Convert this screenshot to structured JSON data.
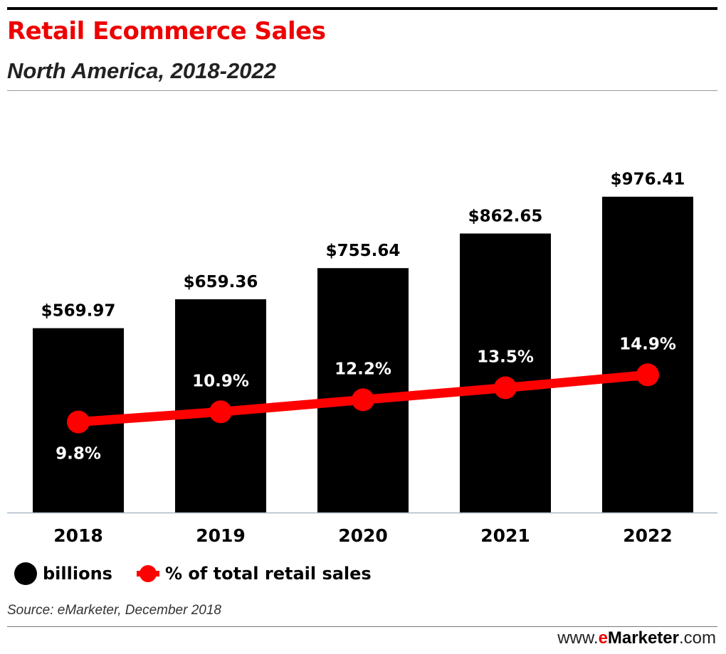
{
  "header": {
    "title": "Retail Ecommerce Sales",
    "subtitle": "North America, 2018-2022"
  },
  "colors": {
    "title": "#ee0000",
    "bars": "#000000",
    "line": "#ff0000"
  },
  "chart_data": {
    "type": "bar",
    "categories": [
      "2018",
      "2019",
      "2020",
      "2021",
      "2022"
    ],
    "series": [
      {
        "name": "billions",
        "type": "bar",
        "axis": "left",
        "values": [
          569.97,
          659.36,
          755.64,
          862.65,
          976.41
        ],
        "labels": [
          "$569.97",
          "$659.36",
          "$755.64",
          "$862.65",
          "$976.41"
        ]
      },
      {
        "name": "% of total retail sales",
        "type": "line",
        "axis": "right",
        "values": [
          9.8,
          10.9,
          12.2,
          13.5,
          14.9
        ],
        "labels": [
          "9.8%",
          "10.9%",
          "12.2%",
          "13.5%",
          "14.9%"
        ]
      }
    ],
    "ylim": [
      0,
      1000
    ],
    "ylim_secondary": [
      0,
      35
    ],
    "grid": false,
    "legend_position": "bottom-left"
  },
  "legend": {
    "bars_label": "billions",
    "line_label": "% of total retail sales"
  },
  "footer": {
    "source": "Source: eMarketer, December 2018",
    "site_prefix": "www.",
    "site_e": "e",
    "site_brand": "Marketer",
    "site_suffix": ".com"
  }
}
